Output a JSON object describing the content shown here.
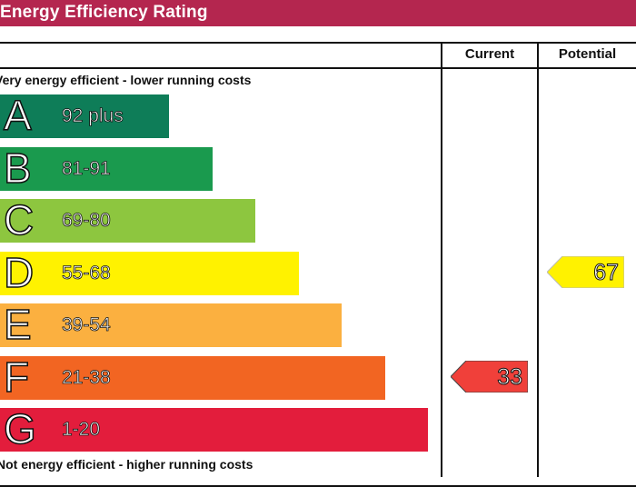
{
  "title": "Energy Efficiency Rating",
  "columns": {
    "current": "Current",
    "potential": "Potential"
  },
  "top_caption": "Very energy efficient - lower running costs",
  "bottom_caption": "Not energy efficient - higher running costs",
  "colors": {
    "header": "#b4264f",
    "A": "#0e7d58",
    "B": "#1a9a4e",
    "C": "#8dc63f",
    "D": "#fff200",
    "E": "#fbb040",
    "F": "#f26522",
    "G": "#e31d3c"
  },
  "chart_data": {
    "type": "bar",
    "title": "Energy Efficiency Rating",
    "categories": [
      "A",
      "B",
      "C",
      "D",
      "E",
      "F",
      "G"
    ],
    "ranges": [
      "92 plus",
      "81-91",
      "69-80",
      "55-68",
      "39-54",
      "21-38",
      "1-20"
    ],
    "series": [
      {
        "name": "Current",
        "value": 33,
        "band": "F"
      },
      {
        "name": "Potential",
        "value": 67,
        "band": "D"
      }
    ]
  },
  "ratings": {
    "current": {
      "value": "33",
      "color": "#f0403a"
    },
    "potential": {
      "value": "67",
      "color": "#fff200"
    }
  }
}
